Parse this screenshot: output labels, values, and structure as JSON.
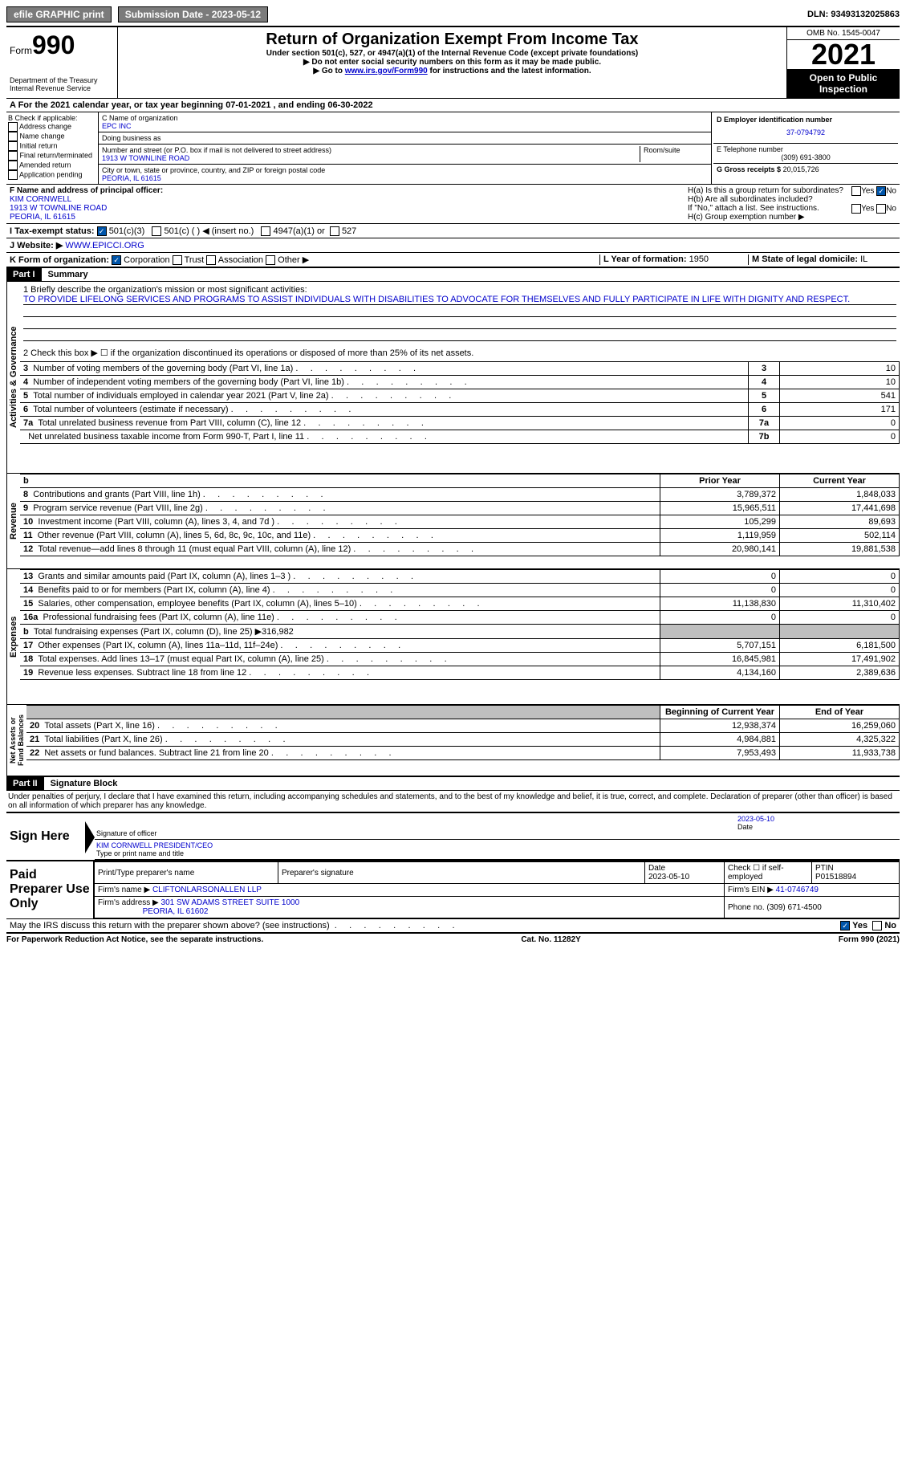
{
  "top": {
    "efile": "efile GRAPHIC print",
    "submission": "Submission Date - 2023-05-12",
    "dln_label": "DLN:",
    "dln": "93493132025863"
  },
  "header": {
    "form_prefix": "Form",
    "form_num": "990",
    "dept": "Department of the Treasury Internal Revenue Service",
    "title": "Return of Organization Exempt From Income Tax",
    "sub1": "Under section 501(c), 527, or 4947(a)(1) of the Internal Revenue Code (except private foundations)",
    "sub2": "▶ Do not enter social security numbers on this form as it may be made public.",
    "sub3_pre": "▶ Go to ",
    "sub3_link": "www.irs.gov/Form990",
    "sub3_post": " for instructions and the latest information.",
    "omb": "OMB No. 1545-0047",
    "year": "2021",
    "inspect": "Open to Public Inspection"
  },
  "line_a": "A For the 2021 calendar year, or tax year beginning 07-01-2021    , and ending 06-30-2022",
  "section_b": {
    "title": "B Check if applicable:",
    "items": [
      "Address change",
      "Name change",
      "Initial return",
      "Final return/terminated",
      "Amended return",
      "Application pending"
    ]
  },
  "section_c": {
    "name_label": "C Name of organization",
    "name": "EPC INC",
    "dba_label": "Doing business as",
    "addr_label": "Number and street (or P.O. box if mail is not delivered to street address)",
    "addr": "1913 W TOWNLINE ROAD",
    "room_label": "Room/suite",
    "city_label": "City or town, state or province, country, and ZIP or foreign postal code",
    "city": "PEORIA, IL  61615"
  },
  "section_d": {
    "ein_label": "D Employer identification number",
    "ein": "37-0794792",
    "phone_label": "E Telephone number",
    "phone": "(309) 691-3800",
    "gross_label": "G Gross receipts $",
    "gross": "20,015,726"
  },
  "section_f": {
    "label": "F Name and address of principal officer:",
    "name": "KIM CORNWELL",
    "addr1": "1913 W TOWNLINE ROAD",
    "addr2": "PEORIA, IL  61615"
  },
  "section_h": {
    "ha": "H(a)  Is this a group return for subordinates?",
    "hb": "H(b)  Are all subordinates included?",
    "hb_note": "If \"No,\" attach a list. See instructions.",
    "hc": "H(c)  Group exemption number ▶",
    "yes": "Yes",
    "no": "No"
  },
  "line_i": {
    "label": "I    Tax-exempt status:",
    "opt1": "501(c)(3)",
    "opt2": "501(c) (  ) ◀ (insert no.)",
    "opt3": "4947(a)(1) or",
    "opt4": "527"
  },
  "line_j": {
    "label": "J   Website: ▶",
    "value": "WWW.EPICCI.ORG"
  },
  "line_k": {
    "label": "K Form of organization:",
    "corp": "Corporation",
    "trust": "Trust",
    "assoc": "Association",
    "other": "Other ▶"
  },
  "line_l": {
    "label": "L Year of formation:",
    "value": "1950"
  },
  "line_m": {
    "label": "M State of legal domicile:",
    "value": "IL"
  },
  "part1": {
    "header": "Part I",
    "title": "Summary",
    "line1_label": "1  Briefly describe the organization's mission or most significant activities:",
    "line1_text": "TO PROVIDE LIFELONG SERVICES AND PROGRAMS TO ASSIST INDIVIDUALS WITH DISABILITIES TO ADVOCATE FOR THEMSELVES AND FULLY PARTICIPATE IN LIFE WITH DIGNITY AND RESPECT.",
    "line2": "2    Check this box ▶ ☐ if the organization discontinued its operations or disposed of more than 25% of its net assets.",
    "sections": {
      "activities": "Activities & Governance",
      "revenue": "Revenue",
      "expenses": "Expenses",
      "net": "Net Assets or Fund Balances"
    },
    "col_prior": "Prior Year",
    "col_current": "Current Year",
    "col_begin": "Beginning of Current Year",
    "col_end": "End of Year",
    "rows_gov": [
      {
        "n": "3",
        "desc": "Number of voting members of the governing body (Part VI, line 1a)",
        "box": "3",
        "val": "10"
      },
      {
        "n": "4",
        "desc": "Number of independent voting members of the governing body (Part VI, line 1b)",
        "box": "4",
        "val": "10"
      },
      {
        "n": "5",
        "desc": "Total number of individuals employed in calendar year 2021 (Part V, line 2a)",
        "box": "5",
        "val": "541"
      },
      {
        "n": "6",
        "desc": "Total number of volunteers (estimate if necessary)",
        "box": "6",
        "val": "171"
      },
      {
        "n": "7a",
        "desc": "Total unrelated business revenue from Part VIII, column (C), line 12",
        "box": "7a",
        "val": "0"
      },
      {
        "n": "",
        "desc": "Net unrelated business taxable income from Form 990-T, Part I, line 11",
        "box": "7b",
        "val": "0"
      }
    ],
    "rows_rev": [
      {
        "n": "8",
        "desc": "Contributions and grants (Part VIII, line 1h)",
        "prior": "3,789,372",
        "curr": "1,848,033"
      },
      {
        "n": "9",
        "desc": "Program service revenue (Part VIII, line 2g)",
        "prior": "15,965,511",
        "curr": "17,441,698"
      },
      {
        "n": "10",
        "desc": "Investment income (Part VIII, column (A), lines 3, 4, and 7d )",
        "prior": "105,299",
        "curr": "89,693"
      },
      {
        "n": "11",
        "desc": "Other revenue (Part VIII, column (A), lines 5, 6d, 8c, 9c, 10c, and 11e)",
        "prior": "1,119,959",
        "curr": "502,114"
      },
      {
        "n": "12",
        "desc": "Total revenue—add lines 8 through 11 (must equal Part VIII, column (A), line 12)",
        "prior": "20,980,141",
        "curr": "19,881,538"
      }
    ],
    "rows_exp": [
      {
        "n": "13",
        "desc": "Grants and similar amounts paid (Part IX, column (A), lines 1–3 )",
        "prior": "0",
        "curr": "0"
      },
      {
        "n": "14",
        "desc": "Benefits paid to or for members (Part IX, column (A), line 4)",
        "prior": "0",
        "curr": "0"
      },
      {
        "n": "15",
        "desc": "Salaries, other compensation, employee benefits (Part IX, column (A), lines 5–10)",
        "prior": "11,138,830",
        "curr": "11,310,402"
      },
      {
        "n": "16a",
        "desc": "Professional fundraising fees (Part IX, column (A), line 11e)",
        "prior": "0",
        "curr": "0"
      },
      {
        "n": "b",
        "desc": "Total fundraising expenses (Part IX, column (D), line 25) ▶316,982",
        "prior": "",
        "curr": "",
        "gray": true
      },
      {
        "n": "17",
        "desc": "Other expenses (Part IX, column (A), lines 11a–11d, 11f–24e)",
        "prior": "5,707,151",
        "curr": "6,181,500"
      },
      {
        "n": "18",
        "desc": "Total expenses. Add lines 13–17 (must equal Part IX, column (A), line 25)",
        "prior": "16,845,981",
        "curr": "17,491,902"
      },
      {
        "n": "19",
        "desc": "Revenue less expenses. Subtract line 18 from line 12",
        "prior": "4,134,160",
        "curr": "2,389,636"
      }
    ],
    "rows_net": [
      {
        "n": "20",
        "desc": "Total assets (Part X, line 16)",
        "prior": "12,938,374",
        "curr": "16,259,060"
      },
      {
        "n": "21",
        "desc": "Total liabilities (Part X, line 26)",
        "prior": "4,984,881",
        "curr": "4,325,322"
      },
      {
        "n": "22",
        "desc": "Net assets or fund balances. Subtract line 21 from line 20",
        "prior": "7,953,493",
        "curr": "11,933,738"
      }
    ]
  },
  "part2": {
    "header": "Part II",
    "title": "Signature Block",
    "penalty": "Under penalties of perjury, I declare that I have examined this return, including accompanying schedules and statements, and to the best of my knowledge and belief, it is true, correct, and complete. Declaration of preparer (other than officer) is based on all information of which preparer has any knowledge.",
    "sign_here": "Sign Here",
    "sig_officer": "Signature of officer",
    "sig_date": "2023-05-10",
    "date_label": "Date",
    "officer_name": "KIM CORNWELL  PRESIDENT/CEO",
    "type_name": "Type or print name and title",
    "paid": "Paid Preparer Use Only",
    "prep_name_label": "Print/Type preparer's name",
    "prep_sig_label": "Preparer's signature",
    "prep_date_label": "Date",
    "prep_date": "2023-05-10",
    "check_self": "Check ☐ if self-employed",
    "ptin_label": "PTIN",
    "ptin": "P01518894",
    "firm_name_label": "Firm's name    ▶",
    "firm_name": "CLIFTONLARSONALLEN LLP",
    "firm_ein_label": "Firm's EIN ▶",
    "firm_ein": "41-0746749",
    "firm_addr_label": "Firm's address ▶",
    "firm_addr1": "301 SW ADAMS STREET SUITE 1000",
    "firm_addr2": "PEORIA, IL  61602",
    "firm_phone_label": "Phone no.",
    "firm_phone": "(309) 671-4500",
    "may_irs": "May the IRS discuss this return with the preparer shown above? (see instructions)"
  },
  "footer": {
    "left": "For Paperwork Reduction Act Notice, see the separate instructions.",
    "center": "Cat. No. 11282Y",
    "right": "Form 990 (2021)"
  }
}
